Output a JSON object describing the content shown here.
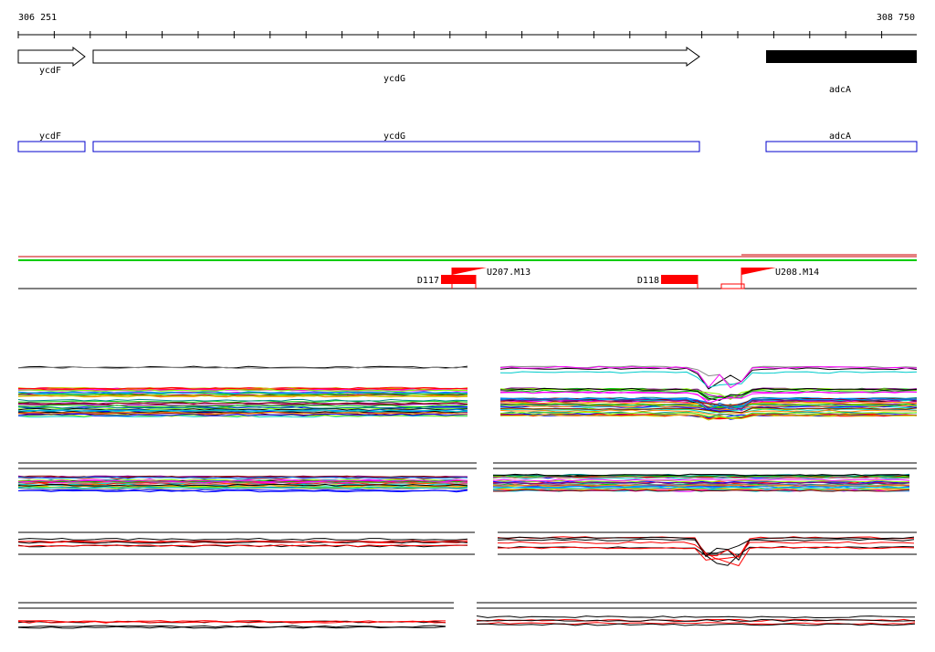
{
  "ruler": {
    "start": "306 251",
    "end": "308 750"
  },
  "genes": [
    {
      "label": "ycdF"
    },
    {
      "label": "ycdG"
    },
    {
      "label": "adcA"
    }
  ],
  "gene_boxes": [
    {
      "label": "ycdF"
    },
    {
      "label": "ycdG"
    },
    {
      "label": "adcA"
    }
  ],
  "features": [
    {
      "label": "D117"
    },
    {
      "label": "U207.M13"
    },
    {
      "label": "D118"
    },
    {
      "label": "U208.M14"
    }
  ]
}
